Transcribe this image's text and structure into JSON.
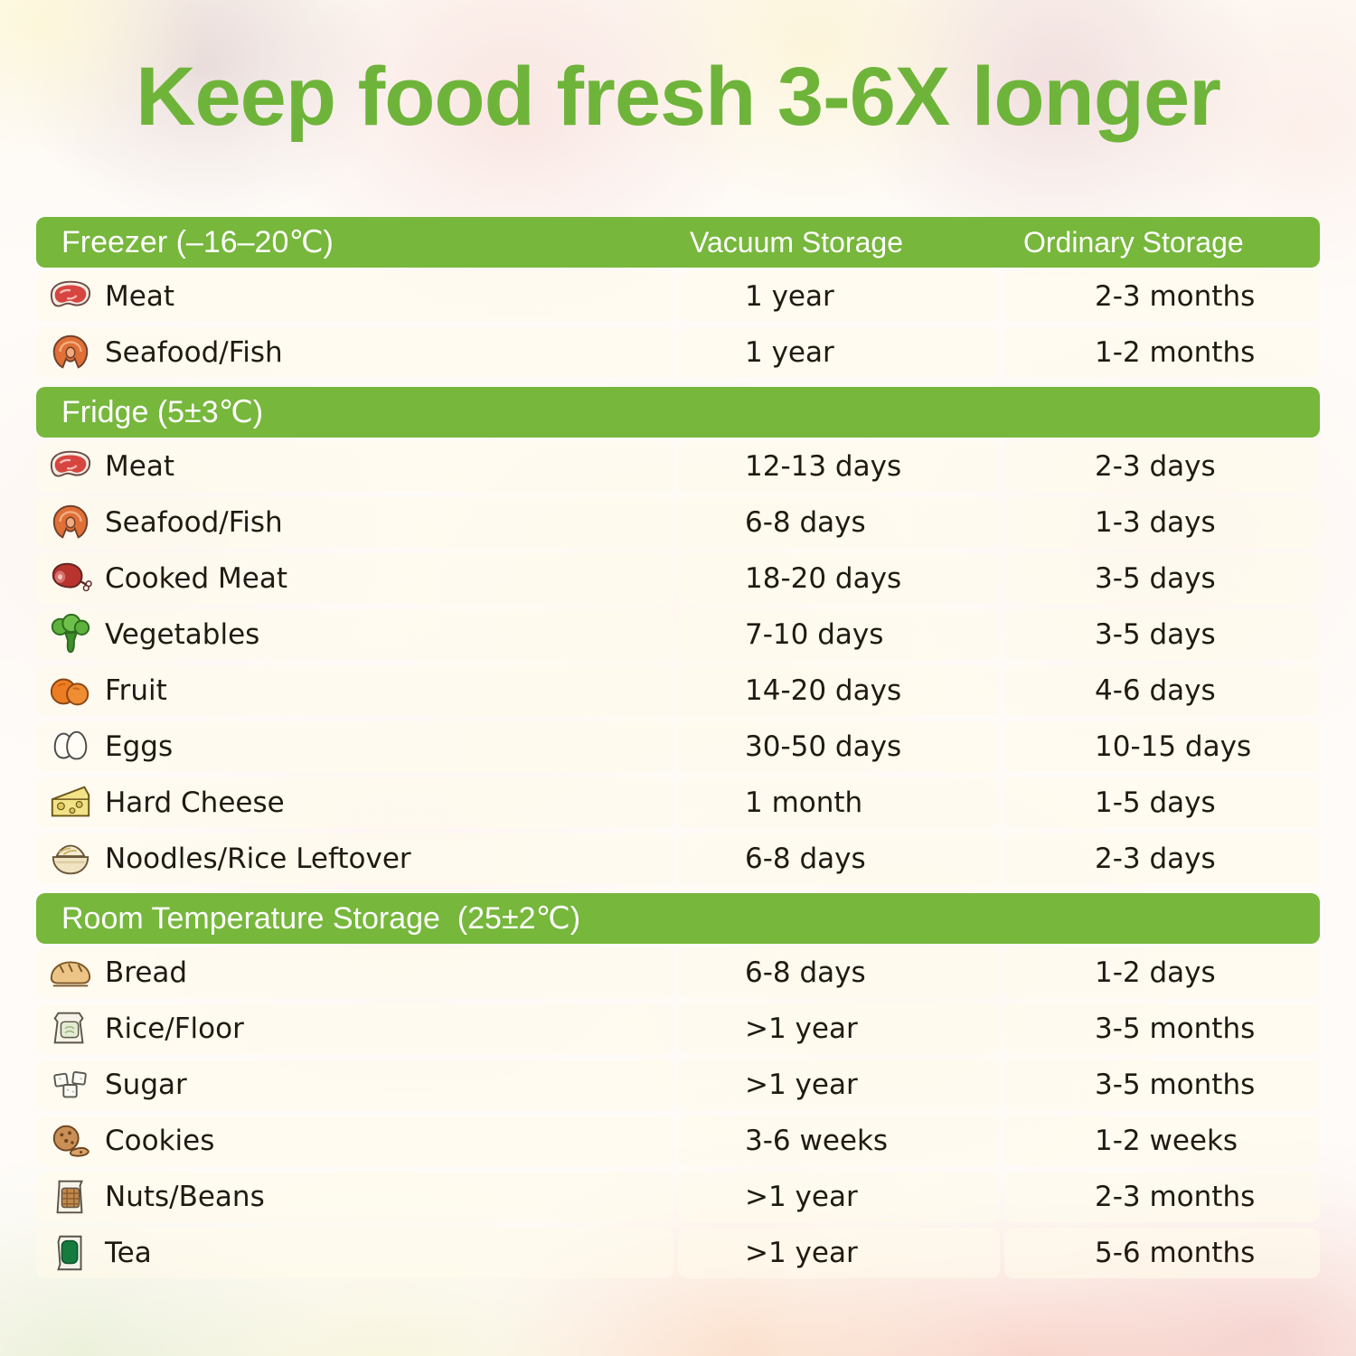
{
  "title": "Keep food fresh 3-6X longer",
  "colors": {
    "title_green": "#6fb43a",
    "bar_green": "#76b73c",
    "bar_text": "#ffffff",
    "row_text": "#201a12"
  },
  "columns": {
    "vacuum": "Vacuum Storage",
    "ordinary": "Ordinary Storage"
  },
  "sections": [
    {
      "header": "Freezer (–16–20℃)",
      "rows": [
        {
          "icon": "meat-icon",
          "label": "Meat",
          "vacuum": "1 year",
          "ordinary": "2-3 months"
        },
        {
          "icon": "fish-icon",
          "label": "Seafood/Fish",
          "vacuum": "1 year",
          "ordinary": "1-2 months"
        }
      ]
    },
    {
      "header": "Fridge (5±3℃)",
      "rows": [
        {
          "icon": "meat-icon",
          "label": "Meat",
          "vacuum": "12-13 days",
          "ordinary": "2-3 days"
        },
        {
          "icon": "fish-icon",
          "label": "Seafood/Fish",
          "vacuum": "6-8 days",
          "ordinary": "1-3 days"
        },
        {
          "icon": "ham-icon",
          "label": "Cooked Meat",
          "vacuum": "18-20 days",
          "ordinary": "3-5 days"
        },
        {
          "icon": "broccoli-icon",
          "label": "Vegetables",
          "vacuum": "7-10 days",
          "ordinary": "3-5 days"
        },
        {
          "icon": "fruit-icon",
          "label": "Fruit",
          "vacuum": "14-20 days",
          "ordinary": "4-6 days"
        },
        {
          "icon": "eggs-icon",
          "label": "Eggs",
          "vacuum": "30-50 days",
          "ordinary": "10-15 days"
        },
        {
          "icon": "cheese-icon",
          "label": "Hard Cheese",
          "vacuum": "1 month",
          "ordinary": "1-5 days"
        },
        {
          "icon": "noodles-icon",
          "label": "Noodles/Rice Leftover",
          "vacuum": "6-8 days",
          "ordinary": "2-3 days"
        }
      ]
    },
    {
      "header": "Room Temperature Storage  (25±2℃)",
      "rows": [
        {
          "icon": "bread-icon",
          "label": "Bread",
          "vacuum": "6-8 days",
          "ordinary": "1-2 days"
        },
        {
          "icon": "rice-icon",
          "label": "Rice/Floor",
          "vacuum": ">1 year",
          "ordinary": "3-5 months"
        },
        {
          "icon": "sugar-icon",
          "label": "Sugar",
          "vacuum": ">1 year",
          "ordinary": "3-5 months"
        },
        {
          "icon": "cookies-icon",
          "label": "Cookies",
          "vacuum": "3-6 weeks",
          "ordinary": "1-2 weeks"
        },
        {
          "icon": "nuts-icon",
          "label": "Nuts/Beans",
          "vacuum": ">1 year",
          "ordinary": "2-3 months"
        },
        {
          "icon": "tea-icon",
          "label": "Tea",
          "vacuum": ">1 year",
          "ordinary": "5-6 months"
        }
      ]
    }
  ],
  "chart_data": {
    "type": "table",
    "title": "Keep food fresh 3-6X longer",
    "columns": [
      "Food",
      "Vacuum Storage",
      "Ordinary Storage"
    ],
    "groups": [
      {
        "group": "Freezer (–16–20℃)",
        "rows": [
          [
            "Meat",
            "1 year",
            "2-3 months"
          ],
          [
            "Seafood/Fish",
            "1 year",
            "1-2 months"
          ]
        ]
      },
      {
        "group": "Fridge (5±3℃)",
        "rows": [
          [
            "Meat",
            "12-13 days",
            "2-3 days"
          ],
          [
            "Seafood/Fish",
            "6-8 days",
            "1-3 days"
          ],
          [
            "Cooked Meat",
            "18-20 days",
            "3-5 days"
          ],
          [
            "Vegetables",
            "7-10 days",
            "3-5 days"
          ],
          [
            "Fruit",
            "14-20 days",
            "4-6 days"
          ],
          [
            "Eggs",
            "30-50 days",
            "10-15 days"
          ],
          [
            "Hard Cheese",
            "1 month",
            "1-5 days"
          ],
          [
            "Noodles/Rice Leftover",
            "6-8 days",
            "2-3 days"
          ]
        ]
      },
      {
        "group": "Room Temperature Storage (25±2℃)",
        "rows": [
          [
            "Bread",
            "6-8 days",
            "1-2 days"
          ],
          [
            "Rice/Floor",
            ">1 year",
            "3-5 months"
          ],
          [
            "Sugar",
            ">1 year",
            "3-5 months"
          ],
          [
            "Cookies",
            "3-6 weeks",
            "1-2 weeks"
          ],
          [
            "Nuts/Beans",
            ">1 year",
            "2-3 months"
          ],
          [
            "Tea",
            ">1 year",
            "5-6 months"
          ]
        ]
      }
    ]
  }
}
